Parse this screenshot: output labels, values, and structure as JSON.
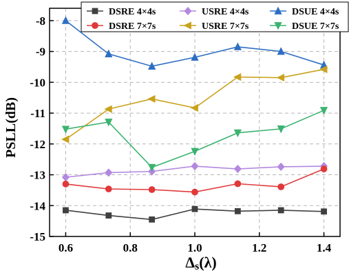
{
  "chart_data": {
    "type": "line",
    "title": "",
    "xlabel": "Δs(λ)",
    "xlabel_main": "Δ",
    "xlabel_sub": "s",
    "xlabel_rest": "(λ)",
    "ylabel": "PSLL(dB)",
    "xlim": [
      0.55,
      1.45
    ],
    "ylim": [
      -15,
      -7.6
    ],
    "x_ticks": [
      0.6,
      0.8,
      1.0,
      1.2,
      1.4
    ],
    "x_tick_labels": [
      "0.6",
      "0.8",
      "1.0",
      "1.2",
      "1.4"
    ],
    "y_ticks": [
      -8,
      -9,
      -10,
      -11,
      -12,
      -13,
      -14,
      -15
    ],
    "y_tick_labels": [
      "-8",
      "-9",
      "-10",
      "-11",
      "-12",
      "-13",
      "-14",
      "-15"
    ],
    "grid": true,
    "legend_position": "top",
    "x": [
      0.6,
      0.733,
      0.867,
      1.0,
      1.133,
      1.267,
      1.4
    ],
    "series": [
      {
        "name": "DSRE 4×4s",
        "color": "#404040",
        "marker": "square",
        "values": [
          -14.15,
          -14.32,
          -14.45,
          -14.11,
          -14.18,
          -14.15,
          -14.19
        ]
      },
      {
        "name": "USRE 4×4s",
        "color": "#b388e0",
        "marker": "diamond",
        "values": [
          -13.08,
          -12.93,
          -12.89,
          -12.72,
          -12.81,
          -12.74,
          -12.72
        ]
      },
      {
        "name": "DSUE 4×4s",
        "color": "#2e6fc4",
        "marker": "triangle-up",
        "values": [
          -8.0,
          -9.08,
          -9.48,
          -9.19,
          -8.85,
          -9.0,
          -9.44
        ]
      },
      {
        "name": "DSRE 7×7s",
        "color": "#e0393a",
        "marker": "circle",
        "values": [
          -13.3,
          -13.46,
          -13.48,
          -13.56,
          -13.29,
          -13.39,
          -12.81
        ]
      },
      {
        "name": "USRE 7×7s",
        "color": "#c9a21c",
        "marker": "triangle-left",
        "values": [
          -11.85,
          -10.87,
          -10.54,
          -10.83,
          -9.83,
          -9.85,
          -9.58
        ]
      },
      {
        "name": "DSUE 7×7s",
        "color": "#3cb371",
        "marker": "triangle-down",
        "values": [
          -11.52,
          -11.29,
          -12.76,
          -12.24,
          -11.64,
          -11.51,
          -10.91
        ]
      }
    ]
  }
}
